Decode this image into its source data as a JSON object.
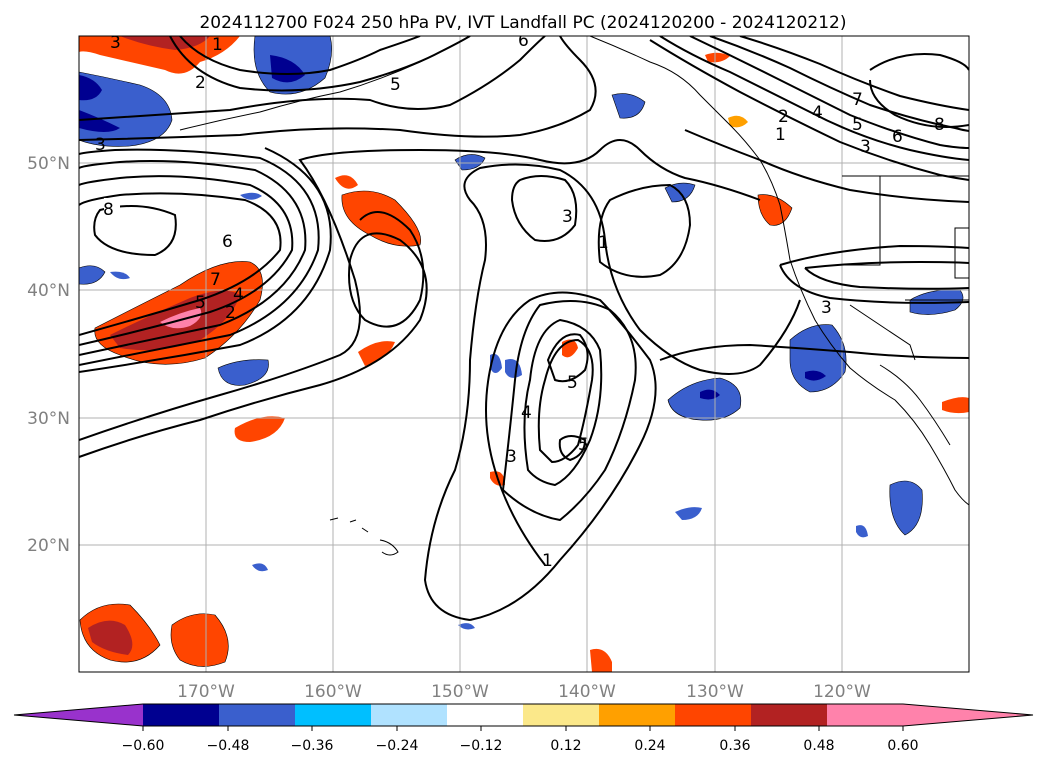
{
  "title": "2024112700 F024 250 hPa PV, IVT Landfall PC (2024120200 - 2024120212)",
  "map": {
    "lat_labels": [
      "50°N",
      "40°N",
      "30°N",
      "20°N"
    ],
    "lon_labels": [
      "170°W",
      "160°W",
      "150°W",
      "140°W",
      "130°W",
      "120°W"
    ]
  },
  "colorbar": {
    "ticks": [
      "−0.60",
      "−0.48",
      "−0.36",
      "−0.24",
      "−0.12",
      "0.12",
      "0.24",
      "0.36",
      "0.48",
      "0.60"
    ],
    "under_color": "#9932cc",
    "over_color": "#ff82ab",
    "colors": [
      "#000090",
      "#3a5fcd",
      "#00bfff",
      "#b0e2ff",
      "#ffffff",
      "#fbe88a",
      "#ffa000",
      "#ff4500",
      "#b22222",
      "#ff82ab"
    ]
  },
  "contour_labels": [
    "3",
    "5",
    "1",
    "6",
    "4",
    "5",
    "3",
    "2",
    "4",
    "5",
    "6",
    "7",
    "8",
    "3",
    "7",
    "8",
    "8",
    "6",
    "5",
    "4",
    "2",
    "1",
    "3",
    "1",
    "3",
    "3",
    "5",
    "4",
    "5",
    "3",
    "1"
  ],
  "fill_colors": {
    "orange_red": "#ff4500",
    "dark_red": "#b22222",
    "pink": "#ff82ab",
    "orange": "#ffa000",
    "yellow": "#fbe88a",
    "royal_blue": "#3a5fcd",
    "navy": "#000090",
    "sky_blue": "#00bfff"
  }
}
